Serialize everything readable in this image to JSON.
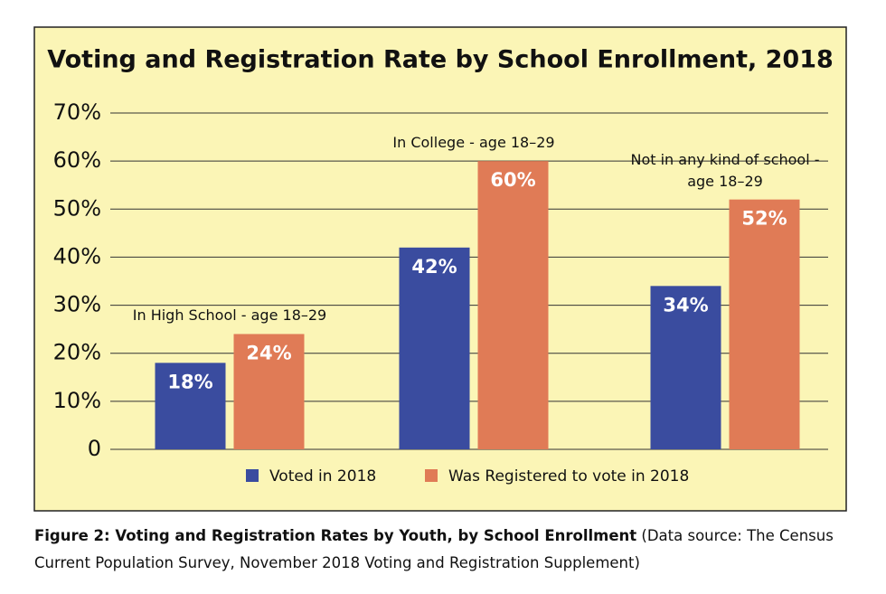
{
  "chart_data": {
    "type": "bar",
    "title": "Voting and Registration Rate by School Enrollment, 2018",
    "categories": [
      "In High School - age 18–29",
      "In College - age 18–29",
      "Not in any kind of school - age 18–29"
    ],
    "series": [
      {
        "name": "Voted in 2018",
        "color": "#3a4c9f",
        "values": [
          18,
          42,
          34
        ],
        "value_labels": [
          "18%",
          "42%",
          "34%"
        ]
      },
      {
        "name": "Was Registered to vote in 2018",
        "color": "#e07b56",
        "values": [
          24,
          60,
          52
        ],
        "value_labels": [
          "24%",
          "60%",
          "52%"
        ]
      }
    ],
    "ylim": [
      0,
      70
    ],
    "yticks": [
      0,
      {
        "value": 10,
        "label": "10%"
      },
      {
        "value": 20,
        "label": "20%"
      },
      {
        "value": 30,
        "label": "30%"
      },
      {
        "value": 40,
        "label": "40%"
      },
      {
        "value": 50,
        "label": "50%"
      },
      {
        "value": 60,
        "label": "60%"
      },
      {
        "value": 70,
        "label": "70%"
      }
    ],
    "grid": true,
    "legend": "bottom",
    "background": "#fbf5b6"
  },
  "caption": {
    "title": "Figure 2: Voting and Registration Rates by Youth, by School Enrollment",
    "text": "(Data source: The Census Current Population Survey, November 2018 Voting and Registration Supplement)"
  }
}
